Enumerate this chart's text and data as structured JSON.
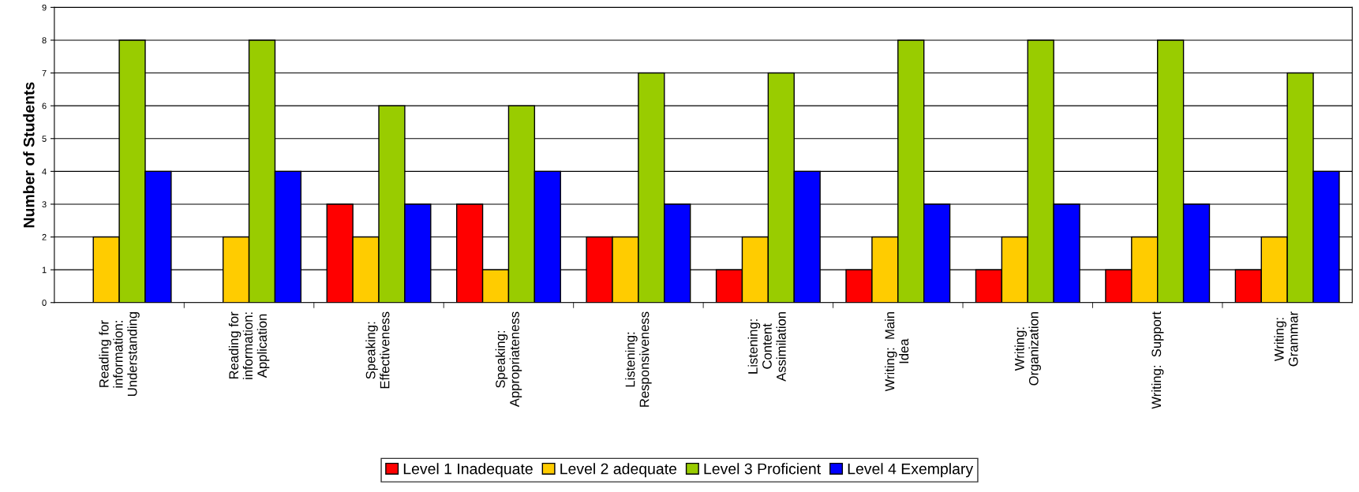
{
  "chart_data": {
    "type": "bar",
    "ylabel": "Number of Students",
    "categories": [
      "Reading for\ninformation:\nUnderstanding",
      "Reading for\ninformation:\nApplication",
      "Speaking:\nEffectiveness",
      "Speaking:\nAppropriateness",
      "Listening:\nResponsiveness",
      "Listening:\nContent\nAssimilation",
      "Writing:  Main\nIdea",
      "Writing:\nOrganization",
      "Writing:  Support",
      "Writing:\nGrammar"
    ],
    "series": [
      {
        "name": "Level 1 Inadequate",
        "color": "#ff0000",
        "values": [
          0,
          0,
          3,
          3,
          2,
          1,
          1,
          1,
          1,
          1
        ]
      },
      {
        "name": "Level 2 adequate",
        "color": "#ffcc00",
        "values": [
          2,
          2,
          2,
          1,
          2,
          2,
          2,
          2,
          2,
          2
        ]
      },
      {
        "name": "Level 3 Proficient",
        "color": "#99cc00",
        "values": [
          8,
          8,
          6,
          6,
          7,
          7,
          8,
          8,
          8,
          7
        ]
      },
      {
        "name": "Level 4 Exemplary",
        "color": "#0000ff",
        "values": [
          4,
          4,
          3,
          4,
          3,
          4,
          3,
          3,
          3,
          4
        ]
      }
    ],
    "ylim": [
      0,
      9
    ],
    "yticks": [
      0,
      1,
      2,
      3,
      4,
      5,
      6,
      7,
      8,
      9
    ],
    "grid": "y",
    "legend": "bottom"
  }
}
